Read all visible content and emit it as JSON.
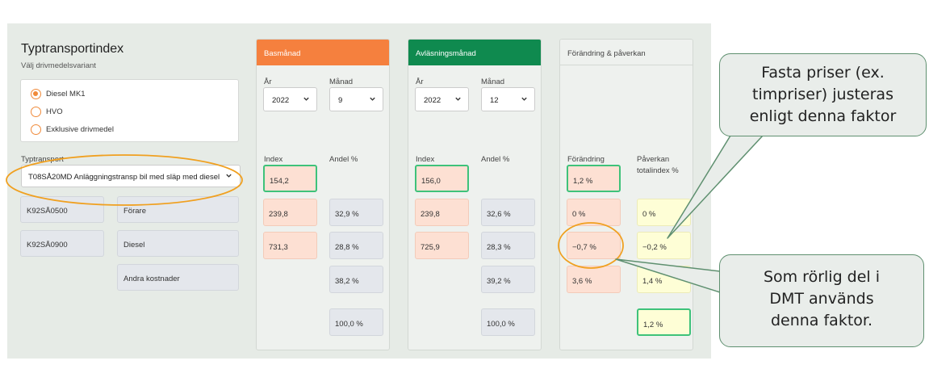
{
  "app": {
    "title": "Typtransportindex",
    "subtitle": "Välj drivmedelsvariant",
    "fuel_options": [
      {
        "label": "Diesel MK1",
        "checked": true
      },
      {
        "label": "HVO",
        "checked": false
      },
      {
        "label": "Exklusive drivmedel",
        "checked": false
      }
    ],
    "typtransport_label": "Typtransport",
    "typtransport_value": "T08SÅ20MD Anläggningstransp bil med släp med diesel",
    "rows": [
      {
        "code": "K92SÅ0500",
        "name": "Förare"
      },
      {
        "code": "K92SÅ0900",
        "name": "Diesel"
      },
      {
        "code": "",
        "name": "Andra kostnader"
      }
    ]
  },
  "bas": {
    "header": "Basmånad",
    "year_label": "År",
    "year_value": "2022",
    "month_label": "Månad",
    "month_value": "9",
    "index_label": "Index",
    "andel_label": "Andel %",
    "index_total": "154,2",
    "index_values": [
      "239,8",
      "731,3"
    ],
    "andel_values": [
      "32,9 %",
      "28,8 %",
      "38,2 %"
    ],
    "andel_total": "100,0 %"
  },
  "avl": {
    "header": "Avläsningsmånad",
    "year_label": "År",
    "year_value": "2022",
    "month_label": "Månad",
    "month_value": "12",
    "index_label": "Index",
    "andel_label": "Andel %",
    "index_total": "156,0",
    "index_values": [
      "239,8",
      "725,9"
    ],
    "andel_values": [
      "32,6 %",
      "28,3 %",
      "39,2 %"
    ],
    "andel_total": "100,0 %"
  },
  "change": {
    "header": "Förändring & påverkan",
    "forandring_label": "Förändring",
    "paverkan_label_1": "Påverkan",
    "paverkan_label_2": "totalindex %",
    "forandring_total": "1,2 %",
    "forandring_values": [
      "0 %",
      "−0,7 %",
      "3,6 %"
    ],
    "paverkan_values": [
      "0 %",
      "−0,2 %",
      "1,4 %"
    ],
    "paverkan_total": "1,2 %"
  },
  "callouts": {
    "top": [
      "Fasta priser (ex.",
      "timpriser) justeras",
      "enligt denna faktor"
    ],
    "bottom": [
      "Som rörlig del i",
      "DMT används",
      "denna faktor."
    ]
  },
  "colors": {
    "orange_header": "#f5803e",
    "green_header": "#0f8a4f",
    "highlight_border": "#3ec27a",
    "annotation_orange": "#f0a020",
    "callout_border": "#5f9070"
  }
}
